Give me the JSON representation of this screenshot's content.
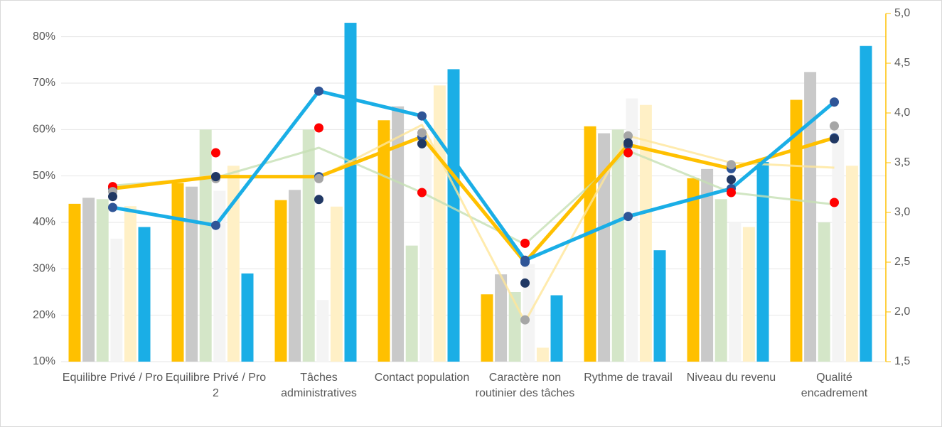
{
  "chart_data": {
    "type": "combo",
    "categories": [
      "Equilibre Privé / Pro",
      "Equilibre Privé / Pro 2",
      "Tâches administratives",
      "Contact population",
      "Caractère non routinier des tâches",
      "Rythme de travail",
      "Niveau du revenu",
      "Qualité encadrement"
    ],
    "ylim": [
      10,
      85
    ],
    "yticks": [
      {
        "value": 10,
        "label": "10%"
      },
      {
        "value": 20,
        "label": "20%"
      },
      {
        "value": 30,
        "label": "30%"
      },
      {
        "value": 40,
        "label": "40%"
      },
      {
        "value": 50,
        "label": "50%"
      },
      {
        "value": 60,
        "label": "60%"
      },
      {
        "value": 70,
        "label": "70%"
      },
      {
        "value": 80,
        "label": "80%"
      }
    ],
    "y2lim": [
      1.5,
      5.0
    ],
    "y2ticks": [
      {
        "value": 1.5,
        "label": "1,5"
      },
      {
        "value": 2.0,
        "label": "2,0"
      },
      {
        "value": 2.5,
        "label": "2,5"
      },
      {
        "value": 3.0,
        "label": "3,0"
      },
      {
        "value": 3.5,
        "label": "3,5"
      },
      {
        "value": 4.0,
        "label": "4,0"
      },
      {
        "value": 4.5,
        "label": "4,5"
      },
      {
        "value": 5.0,
        "label": "5,0"
      }
    ],
    "grid": true,
    "series": [
      {
        "type": "bar",
        "color": "#ffc000",
        "values": [
          44,
          48.5,
          44.8,
          62,
          24.5,
          60.7,
          49.5,
          66.4
        ]
      },
      {
        "type": "bar",
        "color": "#c9c9c9",
        "values": [
          45.3,
          47.7,
          47,
          65,
          28.8,
          59.2,
          51.5,
          72.4
        ]
      },
      {
        "type": "bar",
        "color": "#d4e6c8",
        "values": [
          45,
          60,
          60,
          35,
          25,
          60,
          45,
          40
        ]
      },
      {
        "type": "bar",
        "color": "#f4f4f4",
        "values": [
          36.5,
          46.8,
          23.3,
          58,
          31,
          66.7,
          40,
          60
        ]
      },
      {
        "type": "bar",
        "color": "#fff0c6",
        "values": [
          43.5,
          52.2,
          43.4,
          69.5,
          13,
          65.3,
          39,
          52.2
        ]
      },
      {
        "type": "bar",
        "color": "#1aaee6",
        "values": [
          39,
          29,
          83,
          73,
          24.3,
          34,
          53,
          78
        ]
      },
      {
        "type": "line",
        "axis": "y2",
        "color": "#c5e0b4",
        "values": [
          3.27,
          3.35,
          3.65,
          3.2,
          2.68,
          3.62,
          3.2,
          3.08
        ]
      },
      {
        "type": "line",
        "axis": "y2",
        "color": "#ffe699",
        "values": [
          3.25,
          3.37,
          3.35,
          3.88,
          1.9,
          3.77,
          3.5,
          3.45
        ]
      },
      {
        "type": "line",
        "axis": "y2",
        "color": "#ffc000",
        "values": [
          3.24,
          3.36,
          3.36,
          3.76,
          2.5,
          3.68,
          3.44,
          3.75
        ]
      },
      {
        "type": "line",
        "axis": "y2",
        "color": "#1aaee6",
        "values": [
          3.05,
          2.87,
          4.22,
          3.97,
          2.52,
          2.96,
          3.24,
          4.11
        ]
      },
      {
        "type": "dots",
        "axis": "y2",
        "color": "#ff0000",
        "values": [
          3.26,
          3.6,
          3.85,
          3.2,
          2.69,
          3.6,
          3.2,
          3.1
        ]
      },
      {
        "type": "dots",
        "axis": "y2",
        "color": "#a6a6a6",
        "values": [
          3.21,
          3.34,
          3.34,
          3.8,
          1.92,
          3.77,
          3.48,
          3.87
        ]
      },
      {
        "type": "dots",
        "axis": "y2",
        "color": "#203864",
        "values": [
          3.16,
          3.36,
          3.13,
          3.69,
          2.29,
          3.7,
          3.33,
          3.74
        ]
      }
    ]
  }
}
